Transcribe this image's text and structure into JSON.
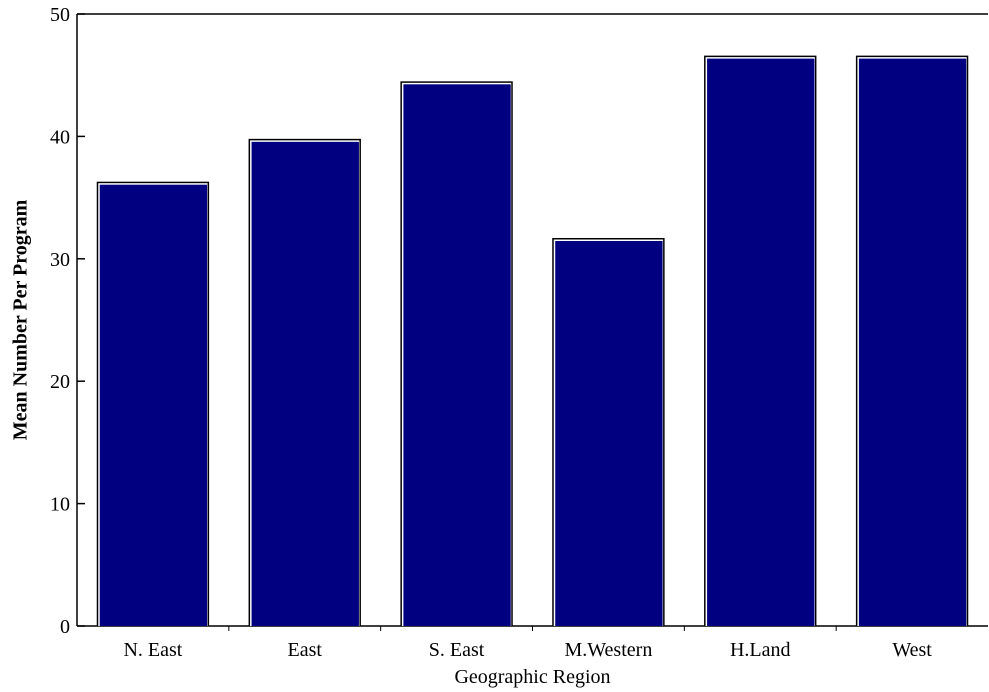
{
  "chart_data": {
    "type": "bar",
    "categories": [
      "N. East",
      "East",
      "S. East",
      "M.Western",
      "H.Land",
      "West"
    ],
    "values": [
      36.3,
      39.8,
      44.5,
      31.7,
      46.6,
      46.6
    ],
    "xlabel": "Geographic Region",
    "ylabel": "Mean Number Per Program",
    "ylim": [
      0,
      50
    ],
    "yticks": [
      0,
      10,
      20,
      30,
      40,
      50
    ],
    "bar_color": "#000080",
    "grid": false
  }
}
